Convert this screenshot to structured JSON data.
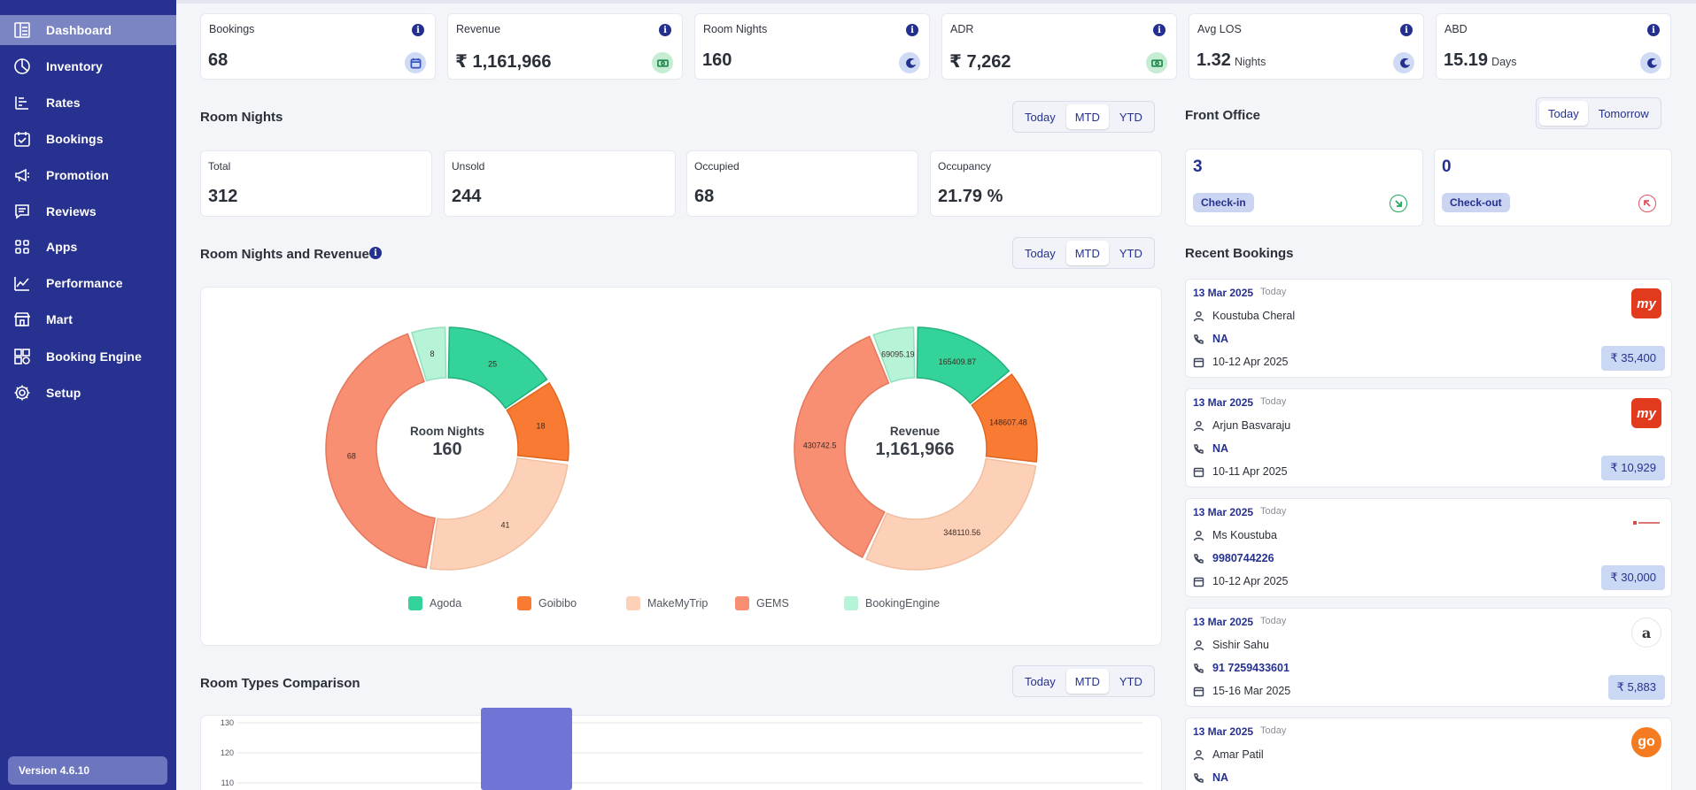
{
  "sidebar": {
    "items": [
      {
        "label": "Dashboard",
        "icon": "dashboard-icon"
      },
      {
        "label": "Inventory",
        "icon": "pie-icon"
      },
      {
        "label": "Rates",
        "icon": "rates-icon"
      },
      {
        "label": "Bookings",
        "icon": "calendar-check-icon"
      },
      {
        "label": "Promotion",
        "icon": "megaphone-icon"
      },
      {
        "label": "Reviews",
        "icon": "chat-icon"
      },
      {
        "label": "Apps",
        "icon": "grid-icon"
      },
      {
        "label": "Performance",
        "icon": "trend-icon"
      },
      {
        "label": "Mart",
        "icon": "store-icon"
      },
      {
        "label": "Booking Engine",
        "icon": "engine-icon"
      },
      {
        "label": "Setup",
        "icon": "gear-icon"
      }
    ],
    "version": "Version 4.6.10"
  },
  "kpis": [
    {
      "label": "Bookings",
      "value": "68",
      "unit": "",
      "badge": "calendar-icon"
    },
    {
      "label": "Revenue",
      "value": "₹ 1,161,966",
      "unit": "",
      "badge": "cash-icon"
    },
    {
      "label": "Room Nights",
      "value": "160",
      "unit": "",
      "badge": "moon-icon"
    },
    {
      "label": "ADR",
      "value": "₹ 7,262",
      "unit": "",
      "badge": "cash-icon"
    },
    {
      "label": "Avg LOS",
      "value": "1.32",
      "unit": "Nights",
      "badge": "moon-icon"
    },
    {
      "label": "ABD",
      "value": "15.19",
      "unit": "Days",
      "badge": "moon-icon"
    }
  ],
  "room_nights": {
    "title": "Room Nights",
    "periods": [
      "Today",
      "MTD",
      "YTD"
    ],
    "selected": "MTD",
    "stats": [
      {
        "label": "Total",
        "value": "312"
      },
      {
        "label": "Unsold",
        "value": "244"
      },
      {
        "label": "Occupied",
        "value": "68"
      },
      {
        "label": "Occupancy",
        "value": "21.79 %"
      }
    ]
  },
  "rn_revenue": {
    "title": "Room Nights and Revenue",
    "periods": [
      "Today",
      "MTD",
      "YTD"
    ],
    "selected": "MTD",
    "left_center_label": "Room Nights",
    "left_center_value": "160",
    "right_center_label": "Revenue",
    "right_center_value": "1,161,966"
  },
  "room_types": {
    "title": "Room Types Comparison",
    "periods": [
      "Today",
      "MTD",
      "YTD"
    ],
    "selected": "MTD"
  },
  "front_office": {
    "title": "Front Office",
    "periods": [
      "Today",
      "Tomorrow"
    ],
    "selected": "Today",
    "checkin_count": "3",
    "checkin_label": "Check-in",
    "checkout_count": "0",
    "checkout_label": "Check-out"
  },
  "recent_bookings": {
    "title": "Recent Bookings",
    "items": [
      {
        "date": "13 Mar 2025",
        "day": "Today",
        "name": "Koustuba Cheral",
        "phone": "NA",
        "stay": "10-12 Apr 2025",
        "amount": "₹ 35,400",
        "source_icon": "makemytrip-logo"
      },
      {
        "date": "13 Mar 2025",
        "day": "Today",
        "name": "Arjun Basvaraju",
        "phone": "NA",
        "stay": "10-11 Apr 2025",
        "amount": "₹ 10,929",
        "source_icon": "makemytrip-logo"
      },
      {
        "date": "13 Mar 2025",
        "day": "Today",
        "name": "Ms Koustuba",
        "phone": "9980744226",
        "stay": "10-12 Apr 2025",
        "amount": "₹ 30,000",
        "source_icon": "hotel-logo"
      },
      {
        "date": "13 Mar 2025",
        "day": "Today",
        "name": "Sishir Sahu",
        "phone": "91 7259433601",
        "stay": "15-16 Mar 2025",
        "amount": "₹ 5,883",
        "source_icon": "agoda-logo"
      },
      {
        "date": "13 Mar 2025",
        "day": "Today",
        "name": "Amar Patil",
        "phone": "NA",
        "stay": "",
        "amount": "",
        "source_icon": "goibibo-logo"
      }
    ]
  },
  "chart_data": [
    {
      "type": "pie",
      "title": "Room Nights",
      "total": "160",
      "categories": [
        "Agoda",
        "Goibibo",
        "MakeMyTrip",
        "GEMS",
        "BookingEngine"
      ],
      "values": [
        25,
        18,
        41,
        68,
        8
      ]
    },
    {
      "type": "pie",
      "title": "Revenue",
      "total": "1,161,966",
      "categories": [
        "Agoda",
        "Goibibo",
        "MakeMyTrip",
        "GEMS",
        "BookingEngine"
      ],
      "values": [
        165409.87,
        148607.48,
        348110.56,
        430742.5,
        69095.19
      ]
    },
    {
      "type": "bar",
      "title": "Room Types Comparison",
      "ylim": [
        105,
        135
      ],
      "yticks": [
        110,
        120,
        130
      ],
      "values": [
        135
      ]
    }
  ],
  "colors": {
    "Agoda": "#34d399",
    "Goibibo": "#f97b33",
    "MakeMyTrip": "#fdd1b8",
    "GEMS": "#f88e72",
    "BookingEngine": "#b7f3d6",
    "bar": "#7074d4",
    "sidebar": "#27318f"
  }
}
